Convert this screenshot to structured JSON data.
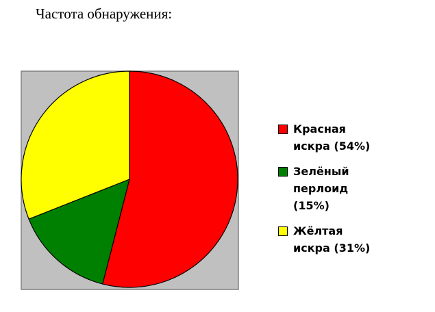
{
  "chart_data": {
    "type": "pie",
    "title": "Частота обнаружения:",
    "categories": [
      "Красная искра",
      "Зелёный перлоид",
      "Жёлтая искра"
    ],
    "values": [
      54,
      15,
      31
    ],
    "value_labels": [
      "(54%)",
      "(15%)",
      "(31%)"
    ],
    "colors": [
      "#ff0000",
      "#008000",
      "#ffff00"
    ],
    "legend": "right"
  }
}
